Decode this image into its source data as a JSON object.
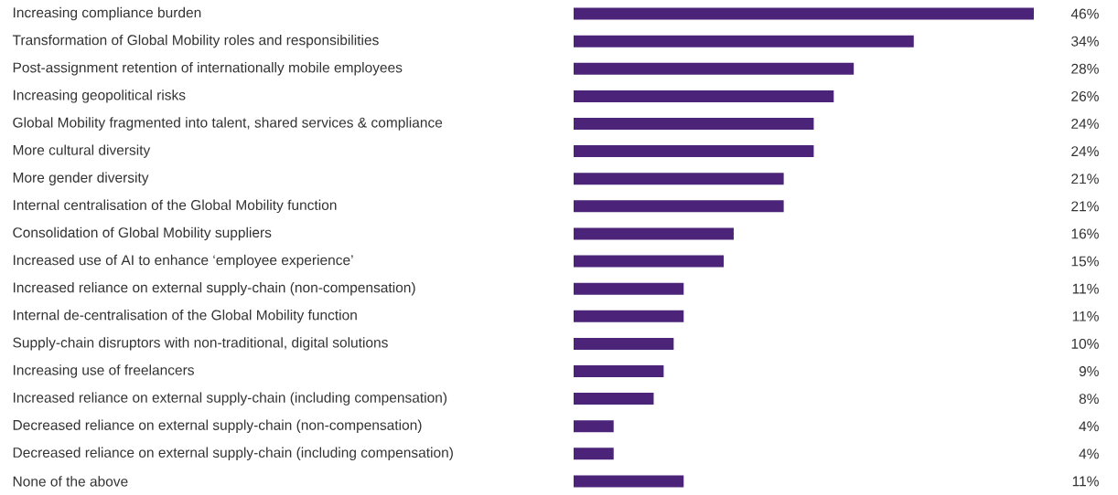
{
  "chart_data": {
    "type": "bar",
    "orientation": "horizontal",
    "color": "#4b2479",
    "categories": [
      "Increasing compliance burden",
      "Transformation of Global Mobility roles and responsibilities",
      "Post-assignment retention of internationally mobile employees",
      "Increasing geopolitical risks",
      "Global Mobility fragmented into talent, shared services & compliance",
      "More cultural diversity",
      "More gender diversity",
      "Internal centralisation of the Global Mobility function",
      "Consolidation of Global Mobility suppliers",
      "Increased use of AI to enhance ‘employee experience’",
      "Increased reliance on external supply-chain (non-compensation)",
      "Internal de-centralisation of the Global Mobility function",
      "Supply-chain disruptors with non-traditional, digital solutions",
      "Increasing use of freelancers",
      "Increased reliance on external supply-chain (including compensation)",
      "Decreased reliance on external supply-chain (non-compensation)",
      "Decreased reliance on external supply-chain (including compensation)",
      "None of the above"
    ],
    "values": [
      46,
      34,
      28,
      26,
      24,
      24,
      21,
      21,
      16,
      15,
      11,
      11,
      10,
      9,
      8,
      4,
      4,
      11
    ],
    "value_labels": [
      "46%",
      "34%",
      "28%",
      "26%",
      "24%",
      "24%",
      "21%",
      "21%",
      "16%",
      "15%",
      "11%",
      "11%",
      "10%",
      "9%",
      "8%",
      "4%",
      "4%",
      "11%"
    ]
  }
}
